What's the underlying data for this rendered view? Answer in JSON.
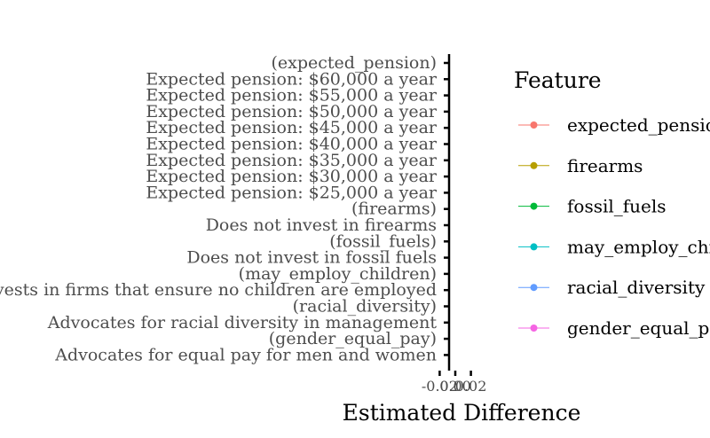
{
  "chart_data": {
    "type": "scatter",
    "xlabel": "Estimated Difference",
    "ylabel": "",
    "x_tick_labels": [
      "-0.02",
      "0.00",
      "0.02"
    ],
    "xlim": [
      -0.025,
      0.025
    ],
    "y_categories": [
      "(expected_pension)",
      "Expected pension: $60,000 a year",
      "Expected pension: $55,000 a year",
      "Expected pension: $50,000 a year",
      "Expected pension: $45,000 a year",
      "Expected pension: $40,000 a year",
      "Expected pension: $35,000 a year",
      "Expected pension: $30,000 a year",
      "Expected pension: $25,000 a year",
      "(firearms)",
      "Does not invest in firearms",
      "(fossil_fuels)",
      "Does not invest in fossil fuels",
      "(may_employ_children)",
      "Invests in firms that ensure no children are employed",
      "(racial_diversity)",
      "Advocates for racial diversity in management",
      "(gender_equal_pay)",
      "Advocates for equal pay for men and women"
    ],
    "series": [
      {
        "name": "expected_pension",
        "color": "#F8766D",
        "values": []
      },
      {
        "name": "firearms",
        "color": "#B79F00",
        "values": []
      },
      {
        "name": "fossil_fuels",
        "color": "#00BA38",
        "values": []
      },
      {
        "name": "may_employ_children",
        "color": "#00BFC4",
        "values": []
      },
      {
        "name": "racial_diversity",
        "color": "#619CFF",
        "values": []
      },
      {
        "name": "gender_equal_pay",
        "color": "#F564E3",
        "values": []
      }
    ],
    "legend_title": "Feature",
    "legend_position": "right",
    "grid": false
  }
}
